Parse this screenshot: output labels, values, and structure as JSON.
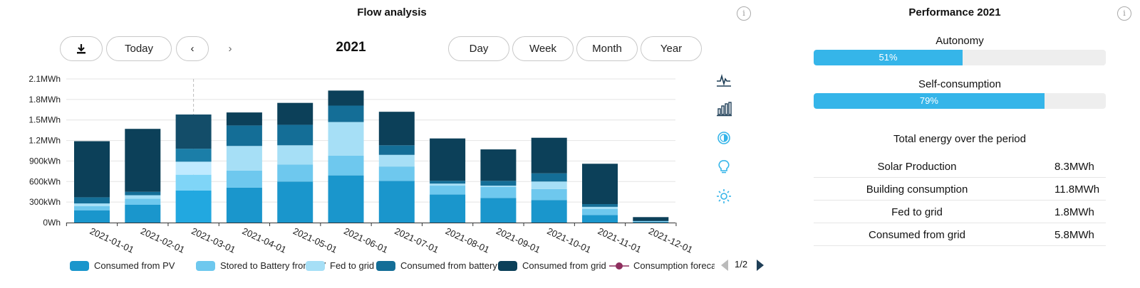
{
  "flow": {
    "title": "Flow analysis",
    "period": "2021",
    "info_symbol": "i",
    "toolbar": {
      "download_icon": "download-icon",
      "today_label": "Today",
      "prev_symbol": "‹",
      "next_symbol": "›",
      "day_label": "Day",
      "week_label": "Week",
      "month_label": "Month",
      "year_label": "Year"
    },
    "side_icons": [
      "line-chart-icon",
      "bar-chart-icon",
      "contrast-icon",
      "lightbulb-icon",
      "sun-icon"
    ],
    "legend": {
      "items": [
        {
          "label": "Consumed from PV",
          "color": "#1a96cc"
        },
        {
          "label": "Stored to Battery from PV",
          "color": "#6ec8ee"
        },
        {
          "label": "Fed to grid",
          "color": "#a6dff6"
        },
        {
          "label": "Consumed from battery",
          "color": "#146e97"
        },
        {
          "label": "Consumed from grid",
          "color": "#0c4059"
        },
        {
          "label": "Consumption forecast",
          "color": "#8e2e5e"
        }
      ],
      "pager": "1/2"
    }
  },
  "chart_data": {
    "type": "bar",
    "stacked": true,
    "categories": [
      "2021-01-01",
      "2021-02-01",
      "2021-03-01",
      "2021-04-01",
      "2021-05-01",
      "2021-06-01",
      "2021-07-01",
      "2021-08-01",
      "2021-09-01",
      "2021-10-01",
      "2021-11-01",
      "2021-12-01"
    ],
    "y_ticks": [
      "0Wh",
      "300kWh",
      "600kWh",
      "900kWh",
      "1.2MWh",
      "1.5MWh",
      "1.8MWh",
      "2.1MWh"
    ],
    "ylim": [
      0,
      2100
    ],
    "y_unit": "kWh",
    "highlight_index": 2,
    "grid": true,
    "legend_position": "bottom",
    "series": [
      {
        "name": "Consumed from PV",
        "color": "#1a96cc",
        "highlight_color": "#22a8e0",
        "values": [
          180,
          260,
          470,
          510,
          600,
          690,
          610,
          410,
          360,
          330,
          110,
          10
        ]
      },
      {
        "name": "Stored to Battery from PV",
        "color": "#6ec8ee",
        "highlight_color": "#7fd5f7",
        "values": [
          60,
          90,
          230,
          250,
          250,
          290,
          210,
          130,
          160,
          160,
          90,
          5
        ]
      },
      {
        "name": "Fed to grid",
        "color": "#a6dff6",
        "highlight_color": "#bfeaff",
        "values": [
          40,
          50,
          190,
          360,
          280,
          490,
          170,
          30,
          20,
          110,
          30,
          5
        ]
      },
      {
        "name": "Consumed from battery",
        "color": "#146e97",
        "highlight_color": "#1b7ea8",
        "values": [
          90,
          50,
          190,
          300,
          300,
          240,
          140,
          40,
          70,
          120,
          40,
          5
        ]
      },
      {
        "name": "Consumed from grid",
        "color": "#0c4059",
        "highlight_color": "#134d69",
        "values": [
          820,
          920,
          500,
          190,
          320,
          220,
          490,
          620,
          460,
          520,
          590,
          55
        ]
      }
    ]
  },
  "performance": {
    "title": "Performance 2021",
    "info_symbol": "i",
    "metrics": [
      {
        "label": "Autonomy",
        "value": 51,
        "value_text": "51%"
      },
      {
        "label": "Self-consumption",
        "value": 79,
        "value_text": "79%"
      }
    ],
    "total_title": "Total energy over the period",
    "stats": [
      {
        "label": "Solar Production",
        "value": "8.3MWh"
      },
      {
        "label": "Building consumption",
        "value": "11.8MWh"
      },
      {
        "label": "Fed to grid",
        "value": "1.8MWh"
      },
      {
        "label": "Consumed from grid",
        "value": "5.8MWh"
      }
    ],
    "bar_color": "#35b5e9"
  }
}
